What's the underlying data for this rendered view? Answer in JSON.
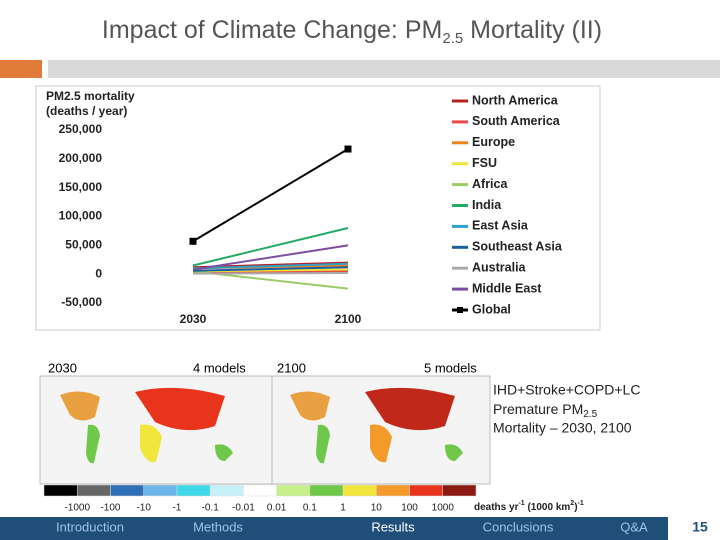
{
  "slide": {
    "title_parts": [
      "Impact of Climate Change: PM",
      "2.5",
      " Mortality (II)"
    ],
    "map_labels": [
      "2030",
      "4 models",
      "2100",
      "5 models"
    ],
    "caption_parts": [
      "IHD+Stroke+COPD+LC",
      "Premature PM",
      "2.5",
      "Mortality – 2030, 2100"
    ],
    "colorscale": {
      "colors": [
        "#000000",
        "#666666",
        "#2e6fb5",
        "#6fb6e8",
        "#3fd8e8",
        "#c8f0f8",
        "#ffffff",
        "#c8f08a",
        "#6fc84a",
        "#f0e63c",
        "#f39a2a",
        "#e8341c",
        "#8a1a12"
      ],
      "labels": [
        "-1000",
        "-100",
        "-10",
        "-1",
        "-0.1",
        "-0.01",
        "0.01",
        "0.1",
        "1",
        "10",
        "100",
        "1000"
      ],
      "unit_parts": [
        "deaths yr",
        "-1",
        " (1000 km",
        "2",
        ")",
        "-1"
      ]
    },
    "nav": [
      "Introduction",
      "Methods",
      "Results",
      "Conclusions",
      "Q&A"
    ],
    "page_number": "15"
  },
  "chart_data": {
    "type": "line",
    "y_label_lines": [
      "PM2.5 mortality",
      "(deaths / year)"
    ],
    "categories": [
      "2030",
      "2100"
    ],
    "ylim": [
      -50000,
      250000
    ],
    "yticks": [
      {
        "value": -50000,
        "label": "-50,000"
      },
      0,
      {
        "value": 50000,
        "label": "50,000"
      },
      {
        "value": 100000,
        "label": "100,000"
      },
      {
        "value": 150000,
        "label": "150,000"
      },
      {
        "value": 200000,
        "label": "200,000"
      },
      {
        "value": 250000,
        "label": "250,000"
      }
    ],
    "series": [
      {
        "name": "North America",
        "color": "#b22222",
        "values": [
          12000,
          20000
        ]
      },
      {
        "name": "South America",
        "color": "#e84a4a",
        "values": [
          3000,
          5000
        ]
      },
      {
        "name": "Europe",
        "color": "#f0821e",
        "values": [
          10000,
          15000
        ]
      },
      {
        "name": "FSU",
        "color": "#f2e33a",
        "values": [
          5000,
          8000
        ]
      },
      {
        "name": "Africa",
        "color": "#99cc66",
        "values": [
          5000,
          -25000
        ]
      },
      {
        "name": "India",
        "color": "#22aa66",
        "values": [
          15000,
          80000
        ]
      },
      {
        "name": "East Asia",
        "color": "#2fa0c8",
        "values": [
          10000,
          18000
        ]
      },
      {
        "name": "Southeast Asia",
        "color": "#1a5f9e",
        "values": [
          6000,
          12000
        ]
      },
      {
        "name": "Australia",
        "color": "#aaaaaa",
        "values": [
          1000,
          2000
        ]
      },
      {
        "name": "Middle East",
        "color": "#7b4fa0",
        "values": [
          8000,
          50000
        ]
      },
      {
        "name": "Global",
        "color": "#000000",
        "values": [
          57000,
          217000
        ],
        "marker": "square"
      }
    ]
  }
}
